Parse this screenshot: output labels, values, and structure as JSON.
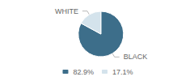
{
  "chart_data": {
    "type": "pie",
    "categories": [
      "BLACK",
      "WHITE"
    ],
    "values": [
      82.9,
      17.1
    ],
    "value_labels": [
      "82.9%",
      "17.1%"
    ],
    "colors": [
      "#3d6e8a",
      "#d4e3ec"
    ],
    "legend": "bottom"
  }
}
